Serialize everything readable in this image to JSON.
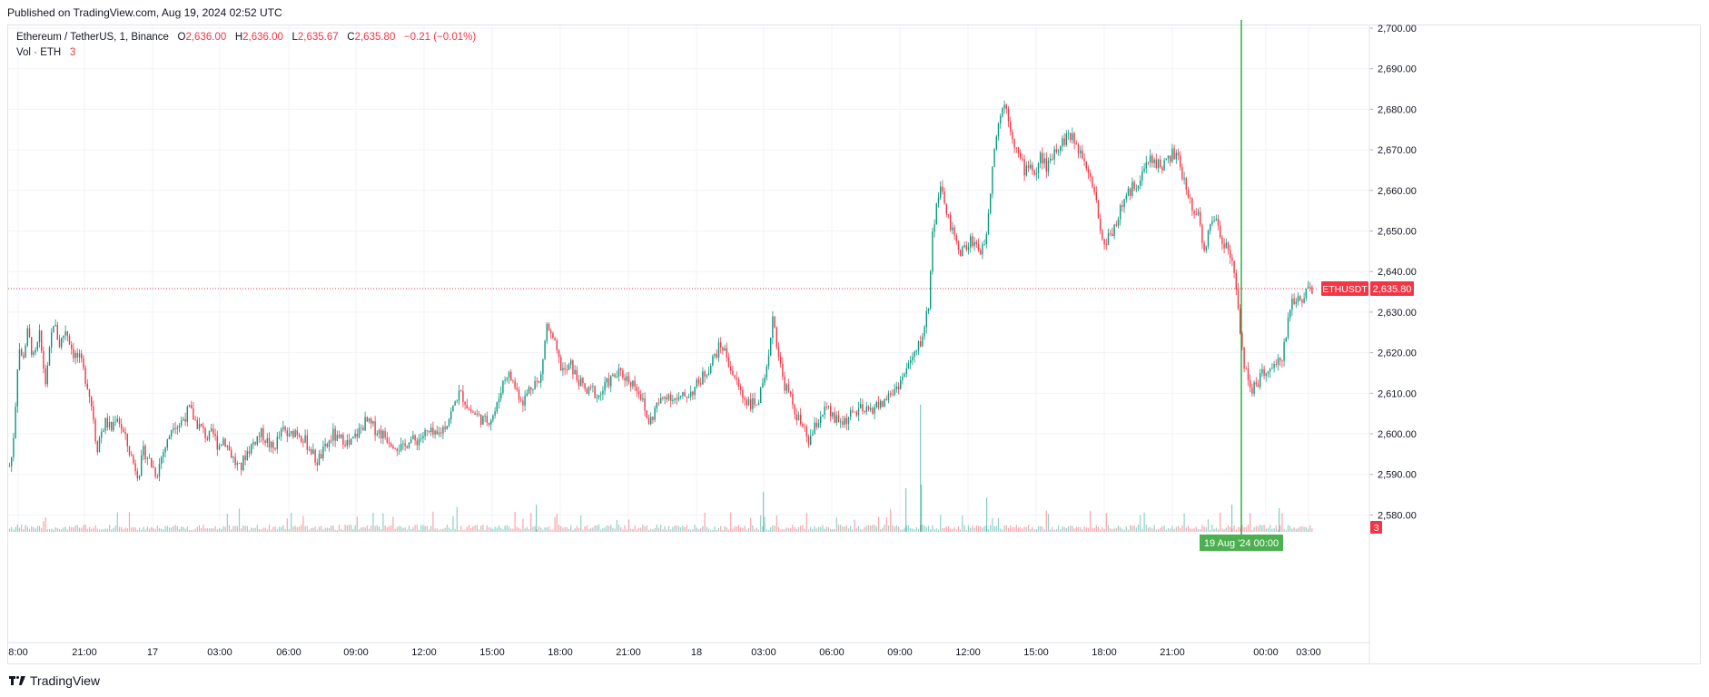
{
  "published": "Published on TradingView.com, Aug 19, 2024 02:52 UTC",
  "legend": {
    "symbol": "Ethereum / TetherUS, 1, Binance",
    "o_label": "O",
    "o": "2,636.00",
    "h_label": "H",
    "h": "2,636.00",
    "l_label": "L",
    "l": "2,635.67",
    "c_label": "C",
    "c": "2,635.80",
    "change": "−0.21 (−0.01%)",
    "vol_label": "Vol · ETH",
    "vol_value": "3"
  },
  "price_tag": {
    "label": "ETHUSDT",
    "value": "2,635.80"
  },
  "volume_tag": "3",
  "crosshair_date": "19 Aug '24   00:00",
  "footer": "TradingView",
  "colors": {
    "up": "#089981",
    "down": "#f23645",
    "grid": "#f0f3fa",
    "crosshair": "#22ab3a",
    "text": "#131722"
  },
  "chart_data": {
    "type": "candlestick",
    "title": "Ethereum / TetherUS, 1, Binance",
    "ylim": [
      2576,
      2700
    ],
    "y_ticks": [
      "2,700.00",
      "2,690.00",
      "2,680.00",
      "2,670.00",
      "2,660.00",
      "2,650.00",
      "2,640.00",
      "2,630.00",
      "2,620.00",
      "2,610.00",
      "2,600.00",
      "2,590.00",
      "2,580.00"
    ],
    "x_ticks": [
      "8:00",
      "21:00",
      "17",
      "03:00",
      "06:00",
      "09:00",
      "12:00",
      "15:00",
      "18:00",
      "21:00",
      "18",
      "03:00",
      "06:00",
      "09:00",
      "12:00",
      "15:00",
      "18:00",
      "21:00",
      "00:00",
      "03:00"
    ],
    "last_price": 2635.8,
    "price_path": [
      [
        0,
        2592
      ],
      [
        3,
        2595
      ],
      [
        6,
        2605
      ],
      [
        10,
        2622
      ],
      [
        14,
        2618
      ],
      [
        20,
        2625
      ],
      [
        27,
        2618
      ],
      [
        33,
        2624
      ],
      [
        40,
        2612
      ],
      [
        48,
        2628
      ],
      [
        55,
        2622
      ],
      [
        62,
        2626
      ],
      [
        70,
        2620
      ],
      [
        78,
        2618
      ],
      [
        86,
        2612
      ],
      [
        92,
        2605
      ],
      [
        96,
        2596
      ],
      [
        100,
        2600
      ],
      [
        106,
        2603
      ],
      [
        112,
        2601
      ],
      [
        118,
        2605
      ],
      [
        124,
        2601
      ],
      [
        130,
        2597
      ],
      [
        136,
        2593
      ],
      [
        142,
        2590
      ],
      [
        148,
        2596
      ],
      [
        155,
        2593
      ],
      [
        162,
        2590
      ],
      [
        168,
        2595
      ],
      [
        174,
        2598
      ],
      [
        180,
        2603
      ],
      [
        186,
        2602
      ],
      [
        192,
        2604
      ],
      [
        198,
        2606
      ],
      [
        205,
        2603
      ],
      [
        212,
        2601
      ],
      [
        218,
        2599
      ],
      [
        224,
        2600
      ],
      [
        230,
        2597
      ],
      [
        236,
        2599
      ],
      [
        242,
        2596
      ],
      [
        248,
        2593
      ],
      [
        254,
        2591
      ],
      [
        260,
        2595
      ],
      [
        266,
        2597
      ],
      [
        272,
        2599
      ],
      [
        278,
        2600
      ],
      [
        284,
        2598
      ],
      [
        290,
        2596
      ],
      [
        296,
        2599
      ],
      [
        302,
        2601
      ],
      [
        308,
        2599
      ],
      [
        314,
        2601
      ],
      [
        320,
        2600
      ],
      [
        326,
        2598
      ],
      [
        332,
        2596
      ],
      [
        338,
        2593
      ],
      [
        344,
        2595
      ],
      [
        350,
        2597
      ],
      [
        356,
        2600
      ],
      [
        362,
        2598
      ],
      [
        368,
        2599
      ],
      [
        374,
        2597
      ],
      [
        380,
        2599
      ],
      [
        386,
        2601
      ],
      [
        392,
        2603
      ],
      [
        398,
        2602
      ],
      [
        404,
        2601
      ],
      [
        410,
        2600
      ],
      [
        416,
        2599
      ],
      [
        422,
        2598
      ],
      [
        428,
        2597
      ],
      [
        434,
        2596
      ],
      [
        440,
        2599
      ],
      [
        446,
        2598
      ],
      [
        452,
        2599
      ],
      [
        458,
        2600
      ],
      [
        464,
        2600
      ],
      [
        470,
        2599
      ],
      [
        476,
        2601
      ],
      [
        482,
        2603
      ],
      [
        488,
        2606
      ],
      [
        494,
        2610
      ],
      [
        500,
        2609
      ],
      [
        506,
        2606
      ],
      [
        512,
        2605
      ],
      [
        518,
        2604
      ],
      [
        524,
        2603
      ],
      [
        530,
        2604
      ],
      [
        536,
        2606
      ],
      [
        542,
        2612
      ],
      [
        548,
        2615
      ],
      [
        554,
        2613
      ],
      [
        560,
        2610
      ],
      [
        566,
        2608
      ],
      [
        572,
        2611
      ],
      [
        578,
        2613
      ],
      [
        584,
        2612
      ],
      [
        588,
        2620
      ],
      [
        592,
        2627
      ],
      [
        596,
        2624
      ],
      [
        600,
        2622
      ],
      [
        606,
        2617
      ],
      [
        612,
        2615
      ],
      [
        618,
        2617
      ],
      [
        624,
        2614
      ],
      [
        630,
        2612
      ],
      [
        636,
        2610
      ],
      [
        642,
        2611
      ],
      [
        648,
        2609
      ],
      [
        654,
        2611
      ],
      [
        660,
        2613
      ],
      [
        666,
        2614
      ],
      [
        672,
        2615
      ],
      [
        678,
        2614
      ],
      [
        684,
        2613
      ],
      [
        690,
        2612
      ],
      [
        696,
        2609
      ],
      [
        700,
        2605
      ],
      [
        704,
        2603
      ],
      [
        708,
        2604
      ],
      [
        712,
        2607
      ],
      [
        718,
        2608
      ],
      [
        724,
        2610
      ],
      [
        730,
        2609
      ],
      [
        736,
        2608
      ],
      [
        742,
        2609
      ],
      [
        748,
        2610
      ],
      [
        754,
        2611
      ],
      [
        760,
        2613
      ],
      [
        766,
        2615
      ],
      [
        772,
        2617
      ],
      [
        778,
        2620
      ],
      [
        784,
        2622
      ],
      [
        790,
        2619
      ],
      [
        796,
        2615
      ],
      [
        802,
        2612
      ],
      [
        808,
        2609
      ],
      [
        814,
        2608
      ],
      [
        820,
        2607
      ],
      [
        826,
        2609
      ],
      [
        832,
        2613
      ],
      [
        836,
        2618
      ],
      [
        840,
        2630
      ],
      [
        844,
        2624
      ],
      [
        848,
        2618
      ],
      [
        852,
        2613
      ],
      [
        858,
        2610
      ],
      [
        864,
        2606
      ],
      [
        870,
        2603
      ],
      [
        876,
        2600
      ],
      [
        880,
        2598
      ],
      [
        884,
        2600
      ],
      [
        888,
        2602
      ],
      [
        894,
        2605
      ],
      [
        900,
        2606
      ],
      [
        906,
        2604
      ],
      [
        912,
        2603
      ],
      [
        918,
        2603
      ],
      [
        924,
        2604
      ],
      [
        930,
        2605
      ],
      [
        936,
        2606
      ],
      [
        942,
        2605
      ],
      [
        948,
        2606
      ],
      [
        954,
        2607
      ],
      [
        960,
        2607
      ],
      [
        966,
        2609
      ],
      [
        972,
        2610
      ],
      [
        978,
        2612
      ],
      [
        984,
        2614
      ],
      [
        990,
        2617
      ],
      [
        996,
        2619
      ],
      [
        1000,
        2621
      ],
      [
        1004,
        2623
      ],
      [
        1008,
        2627
      ],
      [
        1012,
        2632
      ],
      [
        1016,
        2648
      ],
      [
        1020,
        2656
      ],
      [
        1024,
        2660
      ],
      [
        1030,
        2657
      ],
      [
        1036,
        2651
      ],
      [
        1042,
        2647
      ],
      [
        1048,
        2645
      ],
      [
        1054,
        2646
      ],
      [
        1060,
        2648
      ],
      [
        1066,
        2646
      ],
      [
        1072,
        2645
      ],
      [
        1076,
        2651
      ],
      [
        1080,
        2660
      ],
      [
        1084,
        2670
      ],
      [
        1088,
        2676
      ],
      [
        1092,
        2679
      ],
      [
        1096,
        2682
      ],
      [
        1100,
        2678
      ],
      [
        1106,
        2672
      ],
      [
        1112,
        2668
      ],
      [
        1118,
        2665
      ],
      [
        1124,
        2667
      ],
      [
        1130,
        2663
      ],
      [
        1136,
        2669
      ],
      [
        1142,
        2665
      ],
      [
        1148,
        2669
      ],
      [
        1154,
        2671
      ],
      [
        1160,
        2672
      ],
      [
        1166,
        2674
      ],
      [
        1172,
        2672
      ],
      [
        1178,
        2670
      ],
      [
        1184,
        2668
      ],
      [
        1190,
        2664
      ],
      [
        1196,
        2659
      ],
      [
        1200,
        2652
      ],
      [
        1204,
        2646
      ],
      [
        1208,
        2648
      ],
      [
        1214,
        2650
      ],
      [
        1220,
        2653
      ],
      [
        1226,
        2657
      ],
      [
        1232,
        2659
      ],
      [
        1238,
        2661
      ],
      [
        1244,
        2663
      ],
      [
        1250,
        2665
      ],
      [
        1256,
        2668
      ],
      [
        1262,
        2667
      ],
      [
        1268,
        2666
      ],
      [
        1274,
        2667
      ],
      [
        1280,
        2669
      ],
      [
        1286,
        2668
      ],
      [
        1290,
        2665
      ],
      [
        1296,
        2660
      ],
      [
        1302,
        2656
      ],
      [
        1308,
        2655
      ],
      [
        1312,
        2650
      ],
      [
        1316,
        2645
      ],
      [
        1320,
        2649
      ],
      [
        1326,
        2654
      ],
      [
        1332,
        2650
      ],
      [
        1338,
        2647
      ],
      [
        1344,
        2645
      ],
      [
        1348,
        2640
      ],
      [
        1352,
        2632
      ],
      [
        1356,
        2624
      ],
      [
        1360,
        2617
      ],
      [
        1364,
        2612
      ],
      [
        1368,
        2611
      ],
      [
        1372,
        2612
      ],
      [
        1378,
        2614
      ],
      [
        1384,
        2616
      ],
      [
        1390,
        2615
      ],
      [
        1396,
        2617
      ],
      [
        1400,
        2618
      ],
      [
        1404,
        2622
      ],
      [
        1408,
        2628
      ],
      [
        1412,
        2633
      ],
      [
        1416,
        2632
      ],
      [
        1420,
        2634
      ],
      [
        1424,
        2633
      ],
      [
        1428,
        2636
      ],
      [
        1432,
        2636
      ],
      [
        1436,
        2635.8
      ]
    ]
  }
}
